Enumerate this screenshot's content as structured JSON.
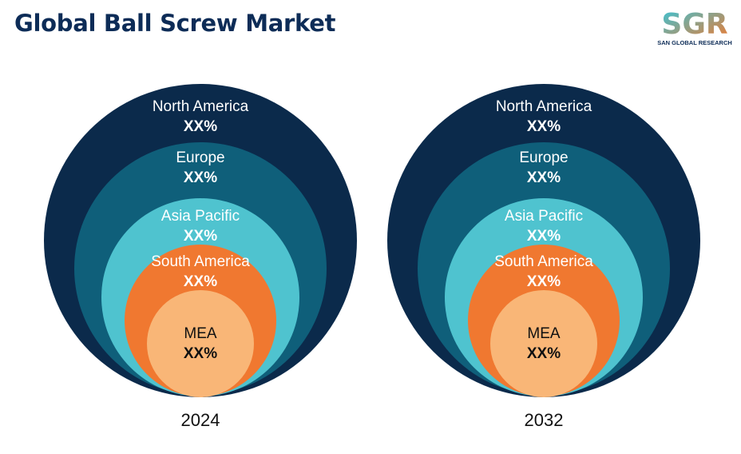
{
  "title": "Global Ball Screw Market",
  "logo": {
    "mark": "SGR",
    "tagline": "SAN GLOBAL RESEARCH"
  },
  "colors": {
    "title": "#0d2c57",
    "north_america": "#0b2a4b",
    "europe": "#0f5f7a",
    "asia_pacific": "#4fc3cf",
    "south_america": "#f07830",
    "mea": "#f9b677"
  },
  "panels": [
    {
      "year": "2024",
      "regions": [
        {
          "name": "North America",
          "value": "XX%"
        },
        {
          "name": "Europe",
          "value": "XX%"
        },
        {
          "name": "Asia Pacific",
          "value": "XX%"
        },
        {
          "name": "South America",
          "value": "XX%"
        },
        {
          "name": "MEA",
          "value": "XX%"
        }
      ]
    },
    {
      "year": "2032",
      "regions": [
        {
          "name": "North America",
          "value": "XX%"
        },
        {
          "name": "Europe",
          "value": "XX%"
        },
        {
          "name": "Asia Pacific",
          "value": "XX%"
        },
        {
          "name": "South America",
          "value": "XX%"
        },
        {
          "name": "MEA",
          "value": "XX%"
        }
      ]
    }
  ]
}
